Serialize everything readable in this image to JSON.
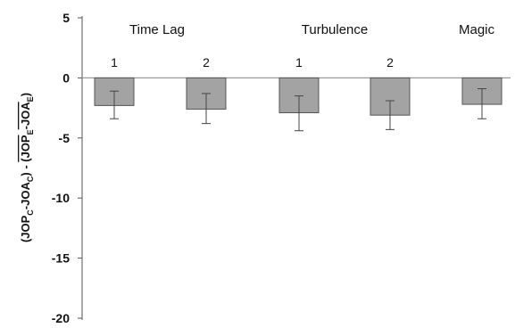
{
  "chart_data": {
    "type": "bar",
    "ylim": [
      -20,
      5
    ],
    "yticks": [
      "5",
      "0",
      "-5",
      "-10",
      "-15",
      "-20"
    ],
    "ylabel": {
      "part1_main": "(JOP",
      "part1_sub_c": "C",
      "part1_mid": "-JOA",
      "part1_sub_c2": "C",
      "part1_close": ")",
      "separator": " - ",
      "part2_main": "(JOP",
      "part2_sub_e": "E",
      "part2_mid": "-JOA",
      "part2_sub_e2": "E",
      "part2_close": ")"
    },
    "groups": [
      {
        "label": "Time Lag"
      },
      {
        "label": "Turbulence"
      },
      {
        "label": "Magic"
      }
    ],
    "bars": [
      {
        "label": "1",
        "group": 0,
        "value": -2.3,
        "err_low": -3.4,
        "err_high": -1.1
      },
      {
        "label": "2",
        "group": 0,
        "value": -2.6,
        "err_low": -3.8,
        "err_high": -1.3
      },
      {
        "label": "1",
        "group": 1,
        "value": -2.9,
        "err_low": -4.4,
        "err_high": -1.5
      },
      {
        "label": "2",
        "group": 1,
        "value": -3.1,
        "err_low": -4.3,
        "err_high": -1.9
      },
      {
        "label": "",
        "group": 2,
        "value": -2.2,
        "err_low": -3.4,
        "err_high": -0.9
      }
    ],
    "colors": {
      "bar_fill": "#a3a3a3",
      "bar_stroke": "#555555",
      "axis": "#555555",
      "zero_line": "#999999"
    },
    "grid": false,
    "legend": "none"
  }
}
